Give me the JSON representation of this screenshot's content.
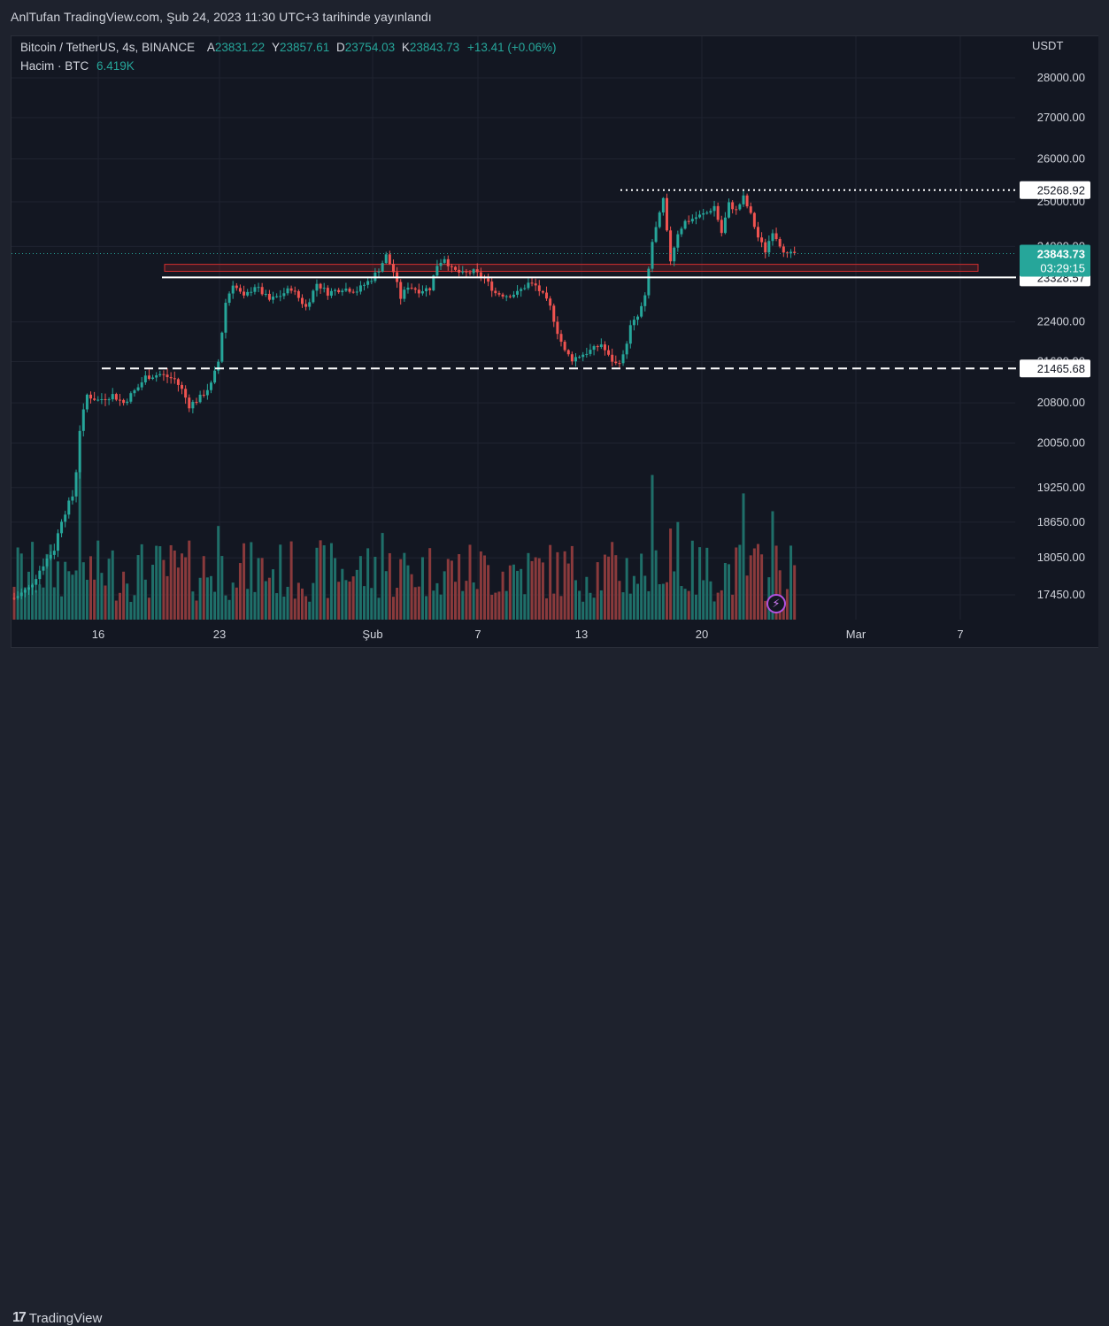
{
  "header": {
    "published_text": "AnlTufan TradingView.com, Şub 24, 2023 11:30 UTC+3 tarihinde yayınlandı"
  },
  "legend": {
    "symbol": "Bitcoin / TetherUS, 4s, BINANCE",
    "open_key": "A",
    "open": "23831.22",
    "high_key": "Y",
    "high": "23857.61",
    "low_key": "D",
    "low": "23754.03",
    "close_key": "K",
    "close": "23843.73",
    "change": "+13.41 (+0.06%)",
    "volume_label": "Hacim · BTC",
    "volume_value": "6.419K"
  },
  "footer": {
    "brand": "TradingView"
  },
  "colors": {
    "up": "#26a69a",
    "down": "#ef5350",
    "vol_up": "#1f6f69",
    "vol_down": "#8a3a3c",
    "background": "#131722",
    "grid": "#1f2330"
  },
  "icons": {
    "alert": "lightning-bolt-icon",
    "logo": "tradingview-logo-icon"
  },
  "chart_data": {
    "type": "candlestick",
    "y_axis_unit": "USDT",
    "price_scale_labels": [
      "28000.00",
      "27000.00",
      "26000.00",
      "25000.00",
      "24000.00",
      "22400.00",
      "21600.00",
      "20800.00",
      "20050.00",
      "19250.00",
      "18650.00",
      "18050.00",
      "17450.00"
    ],
    "x_labels": [
      "16",
      "23",
      "Şub",
      "7",
      "13",
      "20",
      "Mar",
      "7"
    ],
    "current_price": "23843.73",
    "countdown": "03:29:15",
    "levels": [
      {
        "price": "25268.92",
        "style": "dotted"
      },
      {
        "price": "23328.57",
        "style": "solid"
      },
      {
        "price": "21465.68",
        "style": "dashed"
      }
    ],
    "zone": {
      "from": 23460,
      "to": 23610,
      "color": "#d32f2f"
    },
    "anchors": [
      {
        "i": 0,
        "p": 17400
      },
      {
        "i": 4,
        "p": 17550
      },
      {
        "i": 8,
        "p": 17950
      },
      {
        "i": 11,
        "p": 18200
      },
      {
        "i": 13,
        "p": 18700
      },
      {
        "i": 16,
        "p": 19100
      },
      {
        "i": 17,
        "p": 19550
      },
      {
        "i": 18,
        "p": 20300
      },
      {
        "i": 20,
        "p": 20950
      },
      {
        "i": 23,
        "p": 20850
      },
      {
        "i": 27,
        "p": 20950
      },
      {
        "i": 30,
        "p": 20800
      },
      {
        "i": 34,
        "p": 21100
      },
      {
        "i": 36,
        "p": 21300
      },
      {
        "i": 40,
        "p": 21350
      },
      {
        "i": 44,
        "p": 21250
      },
      {
        "i": 46,
        "p": 21050
      },
      {
        "i": 48,
        "p": 20750
      },
      {
        "i": 51,
        "p": 20900
      },
      {
        "i": 54,
        "p": 21150
      },
      {
        "i": 56,
        "p": 21600
      },
      {
        "i": 58,
        "p": 22800
      },
      {
        "i": 60,
        "p": 23200
      },
      {
        "i": 63,
        "p": 22900
      },
      {
        "i": 66,
        "p": 23150
      },
      {
        "i": 70,
        "p": 22850
      },
      {
        "i": 73,
        "p": 22950
      },
      {
        "i": 76,
        "p": 23100
      },
      {
        "i": 80,
        "p": 22700
      },
      {
        "i": 83,
        "p": 23200
      },
      {
        "i": 86,
        "p": 23000
      },
      {
        "i": 90,
        "p": 23100
      },
      {
        "i": 94,
        "p": 23050
      },
      {
        "i": 98,
        "p": 23300
      },
      {
        "i": 100,
        "p": 23500
      },
      {
        "i": 102,
        "p": 23800
      },
      {
        "i": 104,
        "p": 23450
      },
      {
        "i": 106,
        "p": 22900
      },
      {
        "i": 108,
        "p": 23150
      },
      {
        "i": 111,
        "p": 23050
      },
      {
        "i": 114,
        "p": 23100
      },
      {
        "i": 116,
        "p": 23600
      },
      {
        "i": 118,
        "p": 23750
      },
      {
        "i": 120,
        "p": 23500
      },
      {
        "i": 123,
        "p": 23400
      },
      {
        "i": 126,
        "p": 23450
      },
      {
        "i": 129,
        "p": 23300
      },
      {
        "i": 132,
        "p": 23000
      },
      {
        "i": 135,
        "p": 22950
      },
      {
        "i": 138,
        "p": 23000
      },
      {
        "i": 141,
        "p": 23200
      },
      {
        "i": 143,
        "p": 23150
      },
      {
        "i": 145,
        "p": 22950
      },
      {
        "i": 147,
        "p": 22700
      },
      {
        "i": 149,
        "p": 22200
      },
      {
        "i": 151,
        "p": 21800
      },
      {
        "i": 153,
        "p": 21650
      },
      {
        "i": 156,
        "p": 21750
      },
      {
        "i": 159,
        "p": 21850
      },
      {
        "i": 161,
        "p": 21950
      },
      {
        "i": 163,
        "p": 21700
      },
      {
        "i": 165,
        "p": 21550
      },
      {
        "i": 167,
        "p": 21700
      },
      {
        "i": 169,
        "p": 22300
      },
      {
        "i": 171,
        "p": 22500
      },
      {
        "i": 173,
        "p": 22900
      },
      {
        "i": 175,
        "p": 24100
      },
      {
        "i": 177,
        "p": 24700
      },
      {
        "i": 178,
        "p": 25050
      },
      {
        "i": 179,
        "p": 24300
      },
      {
        "i": 180,
        "p": 23700
      },
      {
        "i": 182,
        "p": 24300
      },
      {
        "i": 184,
        "p": 24550
      },
      {
        "i": 187,
        "p": 24650
      },
      {
        "i": 190,
        "p": 24750
      },
      {
        "i": 192,
        "p": 24900
      },
      {
        "i": 194,
        "p": 24300
      },
      {
        "i": 196,
        "p": 24950
      },
      {
        "i": 198,
        "p": 24800
      },
      {
        "i": 200,
        "p": 25100
      },
      {
        "i": 202,
        "p": 24700
      },
      {
        "i": 204,
        "p": 24200
      },
      {
        "i": 206,
        "p": 23900
      },
      {
        "i": 208,
        "p": 24350
      },
      {
        "i": 210,
        "p": 24050
      },
      {
        "i": 212,
        "p": 23800
      },
      {
        "i": 214,
        "p": 23850
      }
    ]
  }
}
